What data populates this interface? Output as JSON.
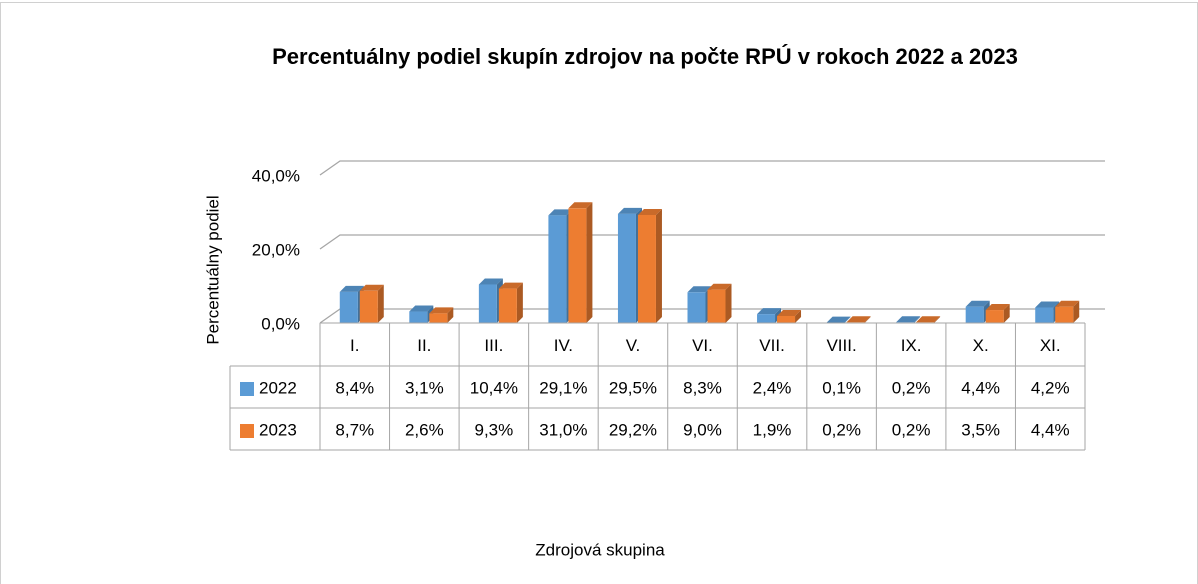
{
  "chart_data": {
    "type": "bar3d",
    "title": "Percentuálny podiel skupín zdrojov na počte RPÚ v rokoch 2022 a 2023",
    "y_label": "Percentuálny podiel",
    "x_label": "Zdrojová skupina",
    "categories": [
      "I.",
      "II.",
      "III.",
      "IV.",
      "V.",
      "VI.",
      "VII.",
      "VIII.",
      "IX.",
      "X.",
      "XI."
    ],
    "series": [
      {
        "name": "2022",
        "color": "#5b9bd5",
        "values": [
          8.4,
          3.1,
          10.4,
          29.1,
          29.5,
          8.3,
          2.4,
          0.1,
          0.2,
          4.4,
          4.2
        ],
        "value_labels": [
          "8,4%",
          "3,1%",
          "10,4%",
          "29,1%",
          "29,5%",
          "8,3%",
          "2,4%",
          "0,1%",
          "0,2%",
          "4,4%",
          "4,2%"
        ]
      },
      {
        "name": "2023",
        "color": "#ed7d31",
        "values": [
          8.7,
          2.6,
          9.3,
          31.0,
          29.2,
          9.0,
          1.9,
          0.2,
          0.2,
          3.5,
          4.4
        ],
        "value_labels": [
          "8,7%",
          "2,6%",
          "9,3%",
          "31,0%",
          "29,2%",
          "9,0%",
          "1,9%",
          "0,2%",
          "0,2%",
          "3,5%",
          "4,4%"
        ]
      }
    ],
    "ylim": [
      0,
      40
    ],
    "yticks": [
      {
        "value": 0,
        "label": "0,0%"
      },
      {
        "value": 20,
        "label": "20,0%"
      },
      {
        "value": 40,
        "label": "40,0%"
      }
    ],
    "grid": true
  }
}
